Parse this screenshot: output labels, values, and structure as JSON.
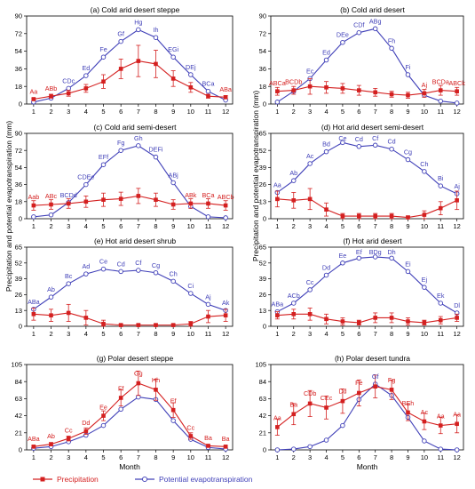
{
  "colors": {
    "precip": "#d42020",
    "pet": "#4040b8"
  },
  "ylabel": "Precipitation and potential evapotranspiration (mm)",
  "xlabel": "Month",
  "legend": {
    "precip": "Precipitation",
    "pet": "Potential evapotranspiration"
  },
  "chart_data": [
    {
      "type": "line",
      "title": "(a) Cold arid desert steppe",
      "x": [
        1,
        2,
        3,
        4,
        5,
        6,
        7,
        8,
        9,
        10,
        11,
        12
      ],
      "ylim": [
        0,
        90
      ],
      "yticks": [
        0,
        18,
        36,
        54,
        72,
        90
      ],
      "series": [
        {
          "name": "Precipitation",
          "values": [
            5,
            8,
            11,
            16,
            23,
            36,
            44,
            41,
            26,
            17,
            8,
            7
          ],
          "error": [
            1,
            2,
            3,
            4,
            7,
            10,
            16,
            14,
            8,
            5,
            2,
            1.5
          ]
        },
        {
          "name": "Potential evapotranspiration",
          "values": [
            2,
            6,
            16,
            29,
            48,
            64,
            76,
            68,
            48,
            30,
            13,
            4
          ]
        }
      ],
      "annotations": [
        "Aa",
        "ABb",
        "CDc",
        "Ed",
        "Fe",
        "Gf",
        "Hg",
        "Ih",
        "EGi",
        "DEj",
        "BCa",
        "ABa"
      ]
    },
    {
      "type": "line",
      "title": "(b) Cold arid desert",
      "x": [
        1,
        2,
        3,
        4,
        5,
        6,
        7,
        8,
        9,
        10,
        11,
        12
      ],
      "ylim": [
        0,
        90
      ],
      "yticks": [
        0,
        18,
        36,
        54,
        72,
        90
      ],
      "series": [
        {
          "name": "Precipitation",
          "values": [
            13,
            14,
            18,
            17,
            16,
            14,
            12,
            10,
            9,
            11,
            14,
            13
          ],
          "error": [
            4,
            4,
            8,
            6,
            5,
            5,
            4,
            3,
            3,
            4,
            5,
            4
          ]
        },
        {
          "name": "Potential evapotranspiration",
          "values": [
            2,
            13,
            26,
            45,
            63,
            73,
            77,
            57,
            30,
            9,
            3,
            1
          ]
        }
      ],
      "annotations": [
        "ABCa",
        "BCDb",
        "Ec",
        "Ed",
        "DEe",
        "CDf",
        "ABg",
        "Fh",
        "Fi",
        "Aj",
        "BCDa",
        "ABCk"
      ]
    },
    {
      "type": "line",
      "title": "(c) Cold arid semi-desert",
      "x": [
        1,
        2,
        3,
        4,
        5,
        6,
        7,
        8,
        9,
        10,
        11,
        12
      ],
      "ylim": [
        0,
        90
      ],
      "yticks": [
        0,
        18,
        36,
        54,
        72,
        90
      ],
      "series": [
        {
          "name": "Precipitation",
          "values": [
            14,
            15,
            16,
            18,
            20,
            21,
            24,
            20,
            15,
            16,
            16,
            14
          ],
          "error": [
            5,
            5,
            5,
            6,
            7,
            7,
            8,
            7,
            5,
            5,
            5,
            5
          ]
        },
        {
          "name": "Potential evapotranspiration",
          "values": [
            2,
            4,
            17,
            36,
            57,
            72,
            77,
            65,
            38,
            13,
            2,
            1
          ]
        }
      ],
      "annotations": [
        "Aab",
        "ABc",
        "BCDd",
        "CDEe",
        "EFf",
        "Fg",
        "Gh",
        "DEFi",
        "ABj",
        "ABk",
        "BCa",
        "ABCb"
      ]
    },
    {
      "type": "line",
      "title": "(d) Hot arid desert semi-desert",
      "x": [
        1,
        2,
        3,
        4,
        5,
        6,
        7,
        8,
        9,
        10,
        11,
        12
      ],
      "ylim": [
        0,
        65
      ],
      "yticks": [
        0,
        13,
        26,
        39,
        52,
        65
      ],
      "series": [
        {
          "name": "Precipitation",
          "values": [
            15,
            14,
            15,
            7,
            2,
            2,
            2,
            2,
            1,
            3,
            8,
            14
          ],
          "error": [
            6,
            6,
            8,
            5,
            2,
            2,
            2,
            2,
            1,
            3,
            5,
            7
          ]
        },
        {
          "name": "Potential evapotranspiration",
          "values": [
            20,
            29,
            42,
            51,
            58,
            55,
            56,
            53,
            45,
            36,
            25,
            19
          ]
        }
      ],
      "annotations": [
        "Aa",
        "Ab",
        "Ac",
        "Bd",
        "Ce",
        "Cd",
        "Cf",
        "Cd",
        "Cg",
        "Ch",
        "Bi",
        "Aj"
      ]
    },
    {
      "type": "line",
      "title": "(e) Hot arid desert shrub",
      "x": [
        1,
        2,
        3,
        4,
        5,
        6,
        7,
        8,
        9,
        10,
        11,
        12
      ],
      "ylim": [
        0,
        65
      ],
      "yticks": [
        0,
        13,
        26,
        39,
        52,
        65
      ],
      "series": [
        {
          "name": "Precipitation",
          "values": [
            10,
            9,
            11,
            7,
            2,
            1,
            1,
            1,
            1,
            2,
            8,
            9
          ],
          "error": [
            5,
            5,
            7,
            6,
            3,
            1,
            1,
            1,
            1,
            2,
            5,
            5
          ]
        },
        {
          "name": "Potential evapotranspiration",
          "values": [
            14,
            24,
            35,
            43,
            47,
            45,
            46,
            44,
            37,
            27,
            18,
            13
          ]
        }
      ],
      "annotations": [
        "ABa",
        "Ab",
        "Bc",
        "Ad",
        "Ce",
        "Cd",
        "Cf",
        "Cg",
        "Ch",
        "Ci",
        "Aj",
        "Ak"
      ]
    },
    {
      "type": "line",
      "title": "(f) Hot arid desert",
      "x": [
        1,
        2,
        3,
        4,
        5,
        6,
        7,
        8,
        9,
        10,
        11,
        12
      ],
      "ylim": [
        0,
        65
      ],
      "yticks": [
        0,
        13,
        26,
        39,
        52,
        65
      ],
      "series": [
        {
          "name": "Precipitation",
          "values": [
            9,
            10,
            10,
            6,
            4,
            3,
            7,
            7,
            4,
            3,
            5,
            7
          ],
          "error": [
            3,
            4,
            5,
            4,
            3,
            2,
            4,
            4,
            3,
            2,
            3,
            3
          ]
        },
        {
          "name": "Potential evapotranspiration",
          "values": [
            12,
            19,
            30,
            42,
            52,
            56,
            57,
            56,
            45,
            32,
            19,
            11
          ]
        }
      ],
      "annotations": [
        "ABa",
        "ACb",
        "Cc",
        "Dd",
        "Ee",
        "Ef",
        "BDg",
        "Dh",
        "Ei",
        "Ej",
        "Ek",
        "Dl"
      ]
    },
    {
      "type": "line",
      "title": "(g) Polar desert steppe",
      "x": [
        1,
        2,
        3,
        4,
        5,
        6,
        7,
        8,
        9,
        10,
        11,
        12
      ],
      "ylim": [
        0,
        105
      ],
      "yticks": [
        0,
        21,
        42,
        63,
        84,
        105
      ],
      "series": [
        {
          "name": "Precipitation",
          "values": [
            4,
            7,
            14,
            23,
            42,
            64,
            82,
            74,
            49,
            17,
            5,
            4
          ],
          "error": [
            1,
            2,
            3,
            4,
            6,
            10,
            15,
            13,
            9,
            4,
            1,
            1
          ]
        },
        {
          "name": "Potential evapotranspiration",
          "values": [
            2,
            4,
            10,
            18,
            30,
            50,
            65,
            62,
            36,
            13,
            3,
            1
          ]
        }
      ],
      "annotations": [
        "ABa",
        "Ab",
        "Cc",
        "Dd",
        "Ee",
        "Ff",
        "Gg",
        "Hh",
        "Ef",
        "Cc",
        "Ba",
        "Ba"
      ]
    },
    {
      "type": "line",
      "title": "(h) Polar desert tundra",
      "x": [
        1,
        2,
        3,
        4,
        5,
        6,
        7,
        8,
        9,
        10,
        11,
        12
      ],
      "ylim": [
        0,
        105
      ],
      "yticks": [
        0,
        21,
        42,
        63,
        84,
        105
      ],
      "series": [
        {
          "name": "Precipitation",
          "values": [
            28,
            44,
            57,
            52,
            60,
            70,
            78,
            74,
            46,
            35,
            30,
            32
          ],
          "error": [
            10,
            13,
            16,
            14,
            15,
            16,
            14,
            12,
            10,
            10,
            10,
            11
          ]
        },
        {
          "name": "Potential evapotranspiration",
          "values": [
            0,
            1,
            4,
            12,
            30,
            62,
            81,
            67,
            40,
            11,
            1,
            0
          ]
        }
      ],
      "annotations": [
        "Aa",
        "Ba",
        "CDb",
        "CEc",
        "Dd",
        "Fe",
        "Gf",
        "Fg",
        "BEh",
        "Ac",
        "Aa",
        "Aa"
      ]
    }
  ]
}
